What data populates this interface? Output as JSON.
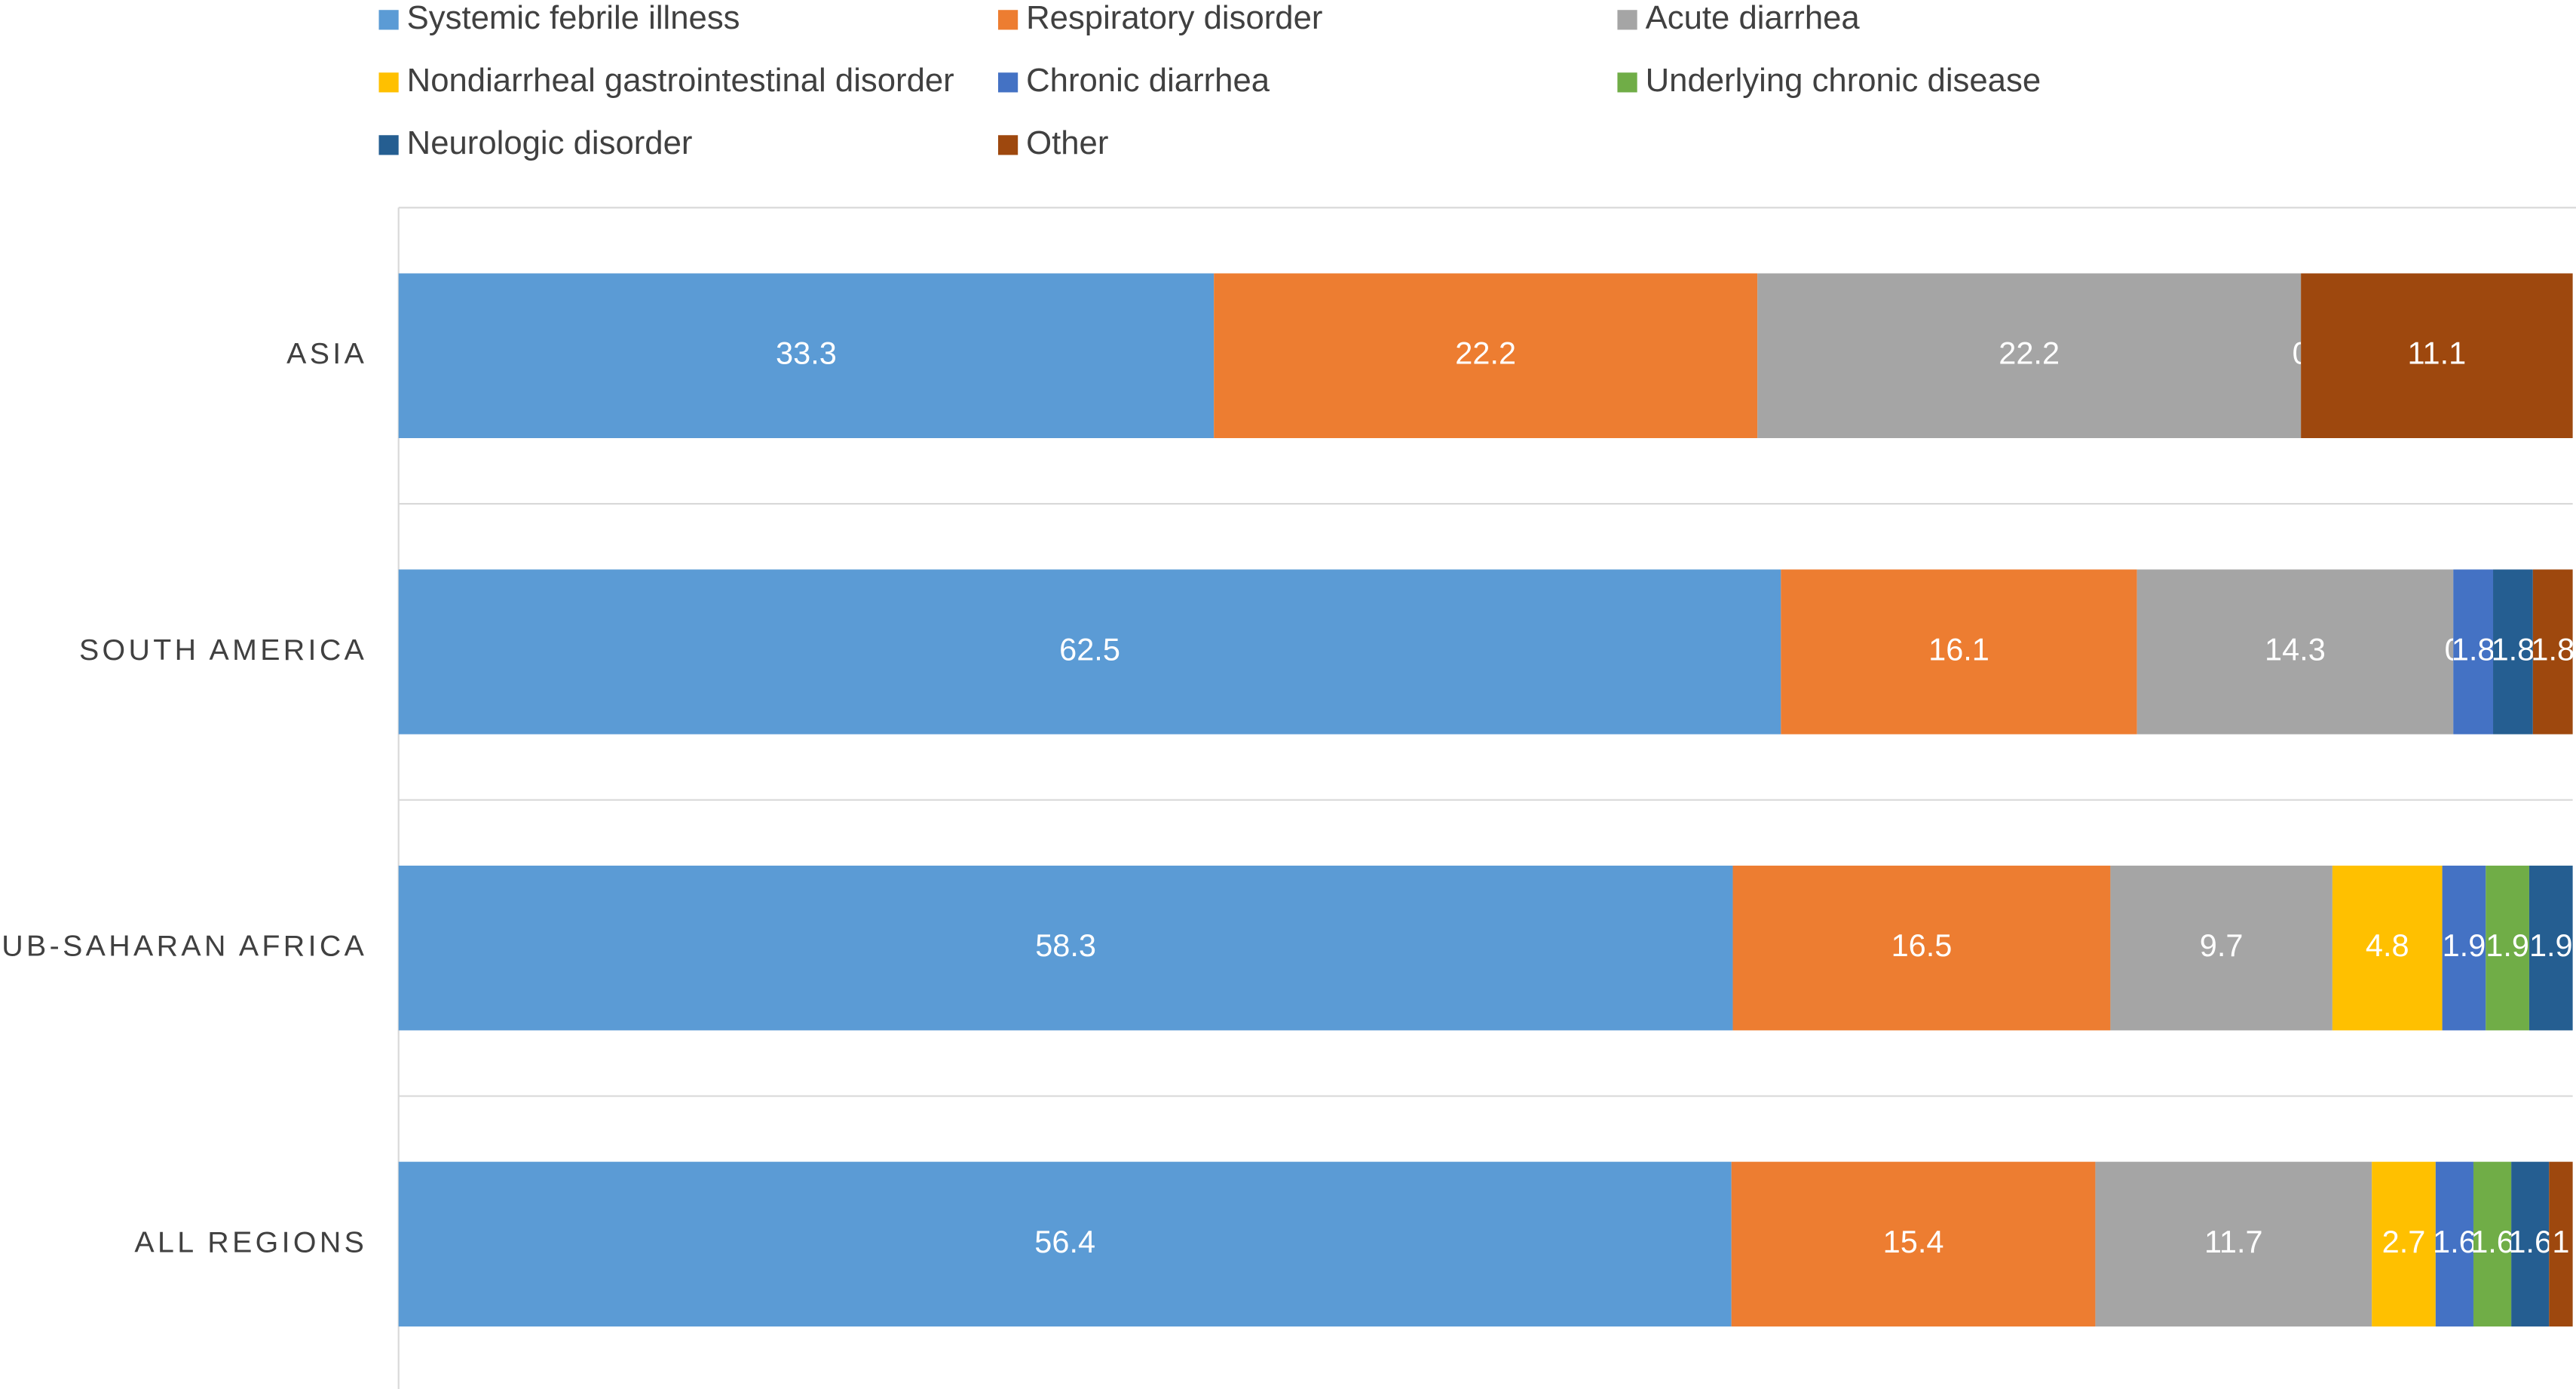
{
  "chart_data": {
    "type": "bar",
    "orientation": "horizontal",
    "stacking": "percent",
    "categories": [
      "ASIA",
      "SOUTH AMERICA",
      "SUB-SAHARAN AFRICA",
      "ALL REGIONS"
    ],
    "series": [
      {
        "name": "Systemic febrile illness",
        "color": "#5b9bd5",
        "values": [
          33.3,
          62.5,
          58.3,
          56.4
        ]
      },
      {
        "name": "Respiratory disorder",
        "color": "#ed7d31",
        "values": [
          22.2,
          16.1,
          16.5,
          15.4
        ]
      },
      {
        "name": "Acute diarrhea",
        "color": "#a5a5a5",
        "values": [
          22.2,
          14.3,
          9.7,
          11.7
        ]
      },
      {
        "name": "Nondiarrheal gastrointestinal disorder",
        "color": "#ffc000",
        "values": [
          0,
          0,
          4.8,
          2.7
        ]
      },
      {
        "name": "Chronic diarrhea",
        "color": "#4472c4",
        "values": [
          null,
          1.8,
          1.9,
          1.6
        ]
      },
      {
        "name": "Underlying chronic disease",
        "color": "#70ad47",
        "values": [
          null,
          null,
          1.9,
          1.6
        ]
      },
      {
        "name": "Neurologic disorder",
        "color": "#255e91",
        "values": [
          null,
          1.8,
          1.9,
          1.6
        ]
      },
      {
        "name": "Other",
        "color": "#9e480e",
        "values": [
          11.1,
          1.8,
          null,
          1
        ]
      }
    ],
    "legend": "top"
  }
}
